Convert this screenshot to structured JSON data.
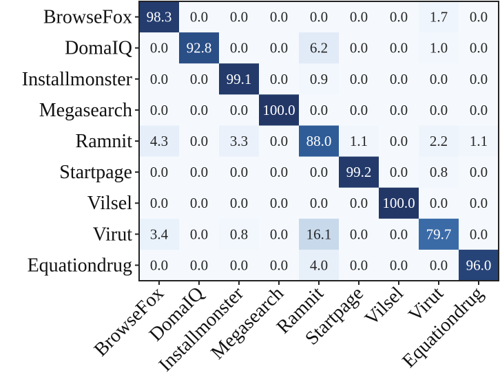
{
  "chart_data": {
    "type": "heatmap",
    "title": "",
    "xlabel": "",
    "ylabel": "",
    "row_labels": [
      "BrowseFox",
      "DomaIQ",
      "Installmonster",
      "Megasearch",
      "Ramnit",
      "Startpage",
      "Vilsel",
      "Virut",
      "Equationdrug"
    ],
    "col_labels": [
      "BrowseFox",
      "DomaIQ",
      "Installmonster",
      "Megasearch",
      "Ramnit",
      "Startpage",
      "Vilsel",
      "Virut",
      "Equationdrug"
    ],
    "values": [
      [
        "98.3",
        "0.0",
        "0.0",
        "0.0",
        "0.0",
        "0.0",
        "0.0",
        "1.7",
        "0.0"
      ],
      [
        "0.0",
        "92.8",
        "0.0",
        "0.0",
        "6.2",
        "0.0",
        "0.0",
        "1.0",
        "0.0"
      ],
      [
        "0.0",
        "0.0",
        "99.1",
        "0.0",
        "0.9",
        "0.0",
        "0.0",
        "0.0",
        "0.0"
      ],
      [
        "0.0",
        "0.0",
        "0.0",
        "100.0",
        "0.0",
        "0.0",
        "0.0",
        "0.0",
        "0.0"
      ],
      [
        "4.3",
        "0.0",
        "3.3",
        "0.0",
        "88.0",
        "1.1",
        "0.0",
        "2.2",
        "1.1"
      ],
      [
        "0.0",
        "0.0",
        "0.0",
        "0.0",
        "0.0",
        "99.2",
        "0.0",
        "0.8",
        "0.0"
      ],
      [
        "0.0",
        "0.0",
        "0.0",
        "0.0",
        "0.0",
        "0.0",
        "100.0",
        "0.0",
        "0.0"
      ],
      [
        "3.4",
        "0.0",
        "0.8",
        "0.0",
        "16.1",
        "0.0",
        "0.0",
        "79.7",
        "0.0"
      ],
      [
        "0.0",
        "0.0",
        "0.0",
        "0.0",
        "4.0",
        "0.0",
        "0.0",
        "0.0",
        "96.0"
      ]
    ],
    "value_range": [
      0,
      100
    ],
    "colormap": "Blues",
    "colorscale": [
      [
        0,
        "#f5f9fe"
      ],
      [
        5,
        "#e4edf8"
      ],
      [
        16,
        "#c8d9eb"
      ],
      [
        80,
        "#3a6aa7"
      ],
      [
        88,
        "#2f5c97"
      ],
      [
        93,
        "#2a4d85"
      ],
      [
        100,
        "#223766"
      ]
    ]
  }
}
